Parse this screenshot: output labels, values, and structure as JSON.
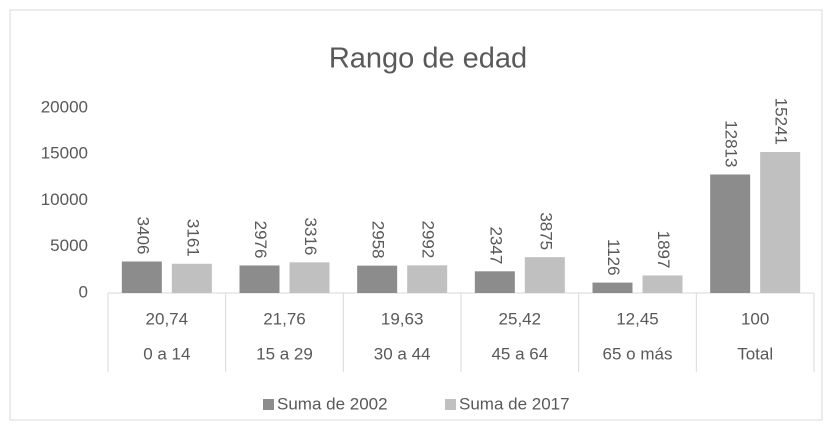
{
  "chart_data": {
    "type": "bar",
    "title": "Rango de edad",
    "categories": [
      "0 a 14",
      "15 a 29",
      "30 a 44",
      "45 a 64",
      "65 o más",
      "Total"
    ],
    "category_sublabels": [
      "20,74",
      "21,76",
      "19,63",
      "25,42",
      "12,45",
      "100"
    ],
    "series": [
      {
        "name": "Suma de 2002",
        "color": "#8c8c8c",
        "values": [
          3406,
          2976,
          2958,
          2347,
          1126,
          12813
        ]
      },
      {
        "name": "Suma de 2017",
        "color": "#c0c0c0",
        "values": [
          3161,
          3316,
          2992,
          3875,
          1897,
          15241
        ]
      }
    ],
    "ylim": [
      0,
      20000
    ],
    "yticks": [
      0,
      5000,
      10000,
      15000,
      20000
    ],
    "grid": false,
    "legend": "bottom"
  }
}
